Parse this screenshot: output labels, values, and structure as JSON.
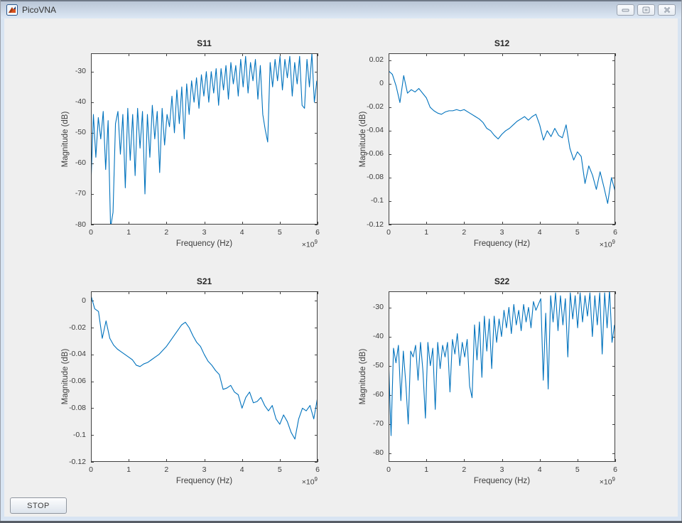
{
  "window": {
    "title": "PicoVNA"
  },
  "stop_button": {
    "label": "STOP"
  },
  "colors": {
    "line": "#0072BD",
    "axis": "#404040",
    "figure_bg": "#efefef",
    "plot_bg": "#ffffff",
    "titlebar_top": "#b9c6d6",
    "titlebar_bottom": "#dde8f5"
  },
  "chart_data": [
    {
      "type": "line",
      "title": "S11",
      "xlabel": "Frequency (Hz)",
      "ylabel": "Magnitude (dB)",
      "x_scale": {
        "base": "×10",
        "exp": "9"
      },
      "xlim": [
        0,
        6
      ],
      "ylim": [
        -80,
        -24
      ],
      "xticks": [
        0,
        1,
        2,
        3,
        4,
        5,
        6
      ],
      "xtick_labels": [
        "0",
        "1",
        "2",
        "3",
        "4",
        "5",
        "6"
      ],
      "yticks": [
        -80,
        -70,
        -60,
        -50,
        -40,
        -30
      ],
      "ytick_labels": [
        "-80",
        "-70",
        "-60",
        "-50",
        "-40",
        "-30"
      ],
      "x0": 0,
      "dx": 0.065,
      "y": [
        -67,
        -44,
        -58,
        -45,
        -52,
        -43,
        -62,
        -46,
        -81,
        -76,
        -47,
        -43,
        -57,
        -44,
        -68,
        -42,
        -59,
        -44,
        -64,
        -42,
        -55,
        -43,
        -70,
        -44,
        -58,
        -41,
        -52,
        -43,
        -63,
        -42,
        -54,
        -44,
        -48,
        -38,
        -50,
        -36,
        -47,
        -35,
        -52,
        -34,
        -44,
        -33,
        -40,
        -32,
        -42,
        -31,
        -38,
        -30,
        -40,
        -30,
        -37,
        -29,
        -41,
        -29,
        -36,
        -28,
        -39,
        -27,
        -34,
        -28,
        -38,
        -26,
        -35,
        -25,
        -37,
        -27,
        -33,
        -26,
        -39,
        -28,
        -44,
        -49,
        -53,
        -27,
        -35,
        -26,
        -33,
        -25,
        -36,
        -26,
        -32,
        -25,
        -38,
        -27,
        -34,
        -25,
        -41,
        -42,
        -26,
        -35,
        -24,
        -40,
        -33
      ]
    },
    {
      "type": "line",
      "title": "S12",
      "xlabel": "Frequency (Hz)",
      "ylabel": "Magnitude (dB)",
      "x_scale": {
        "base": "×10",
        "exp": "9"
      },
      "xlim": [
        0,
        6
      ],
      "ylim": [
        -0.12,
        0.026
      ],
      "xticks": [
        0,
        1,
        2,
        3,
        4,
        5,
        6
      ],
      "xtick_labels": [
        "0",
        "1",
        "2",
        "3",
        "4",
        "5",
        "6"
      ],
      "yticks": [
        0.02,
        0,
        -0.02,
        -0.04,
        -0.06,
        -0.08,
        -0.1,
        -0.12
      ],
      "ytick_labels": [
        "0.02",
        "0",
        "-0.02",
        "-0.04",
        "-0.06",
        "-0.08",
        "-0.1",
        "-0.12"
      ],
      "x0": 0,
      "dx": 0.1,
      "y": [
        0.011,
        0.008,
        -0.002,
        -0.016,
        0.007,
        -0.008,
        -0.005,
        -0.007,
        -0.004,
        -0.008,
        -0.012,
        -0.02,
        -0.023,
        -0.025,
        -0.026,
        -0.024,
        -0.023,
        -0.023,
        -0.022,
        -0.023,
        -0.022,
        -0.024,
        -0.026,
        -0.028,
        -0.03,
        -0.033,
        -0.038,
        -0.04,
        -0.044,
        -0.047,
        -0.043,
        -0.04,
        -0.038,
        -0.035,
        -0.032,
        -0.03,
        -0.028,
        -0.031,
        -0.028,
        -0.026,
        -0.035,
        -0.048,
        -0.04,
        -0.045,
        -0.038,
        -0.044,
        -0.046,
        -0.035,
        -0.055,
        -0.065,
        -0.058,
        -0.062,
        -0.085,
        -0.07,
        -0.078,
        -0.09,
        -0.075,
        -0.088,
        -0.102,
        -0.08,
        -0.092
      ]
    },
    {
      "type": "line",
      "title": "S21",
      "xlabel": "Frequency (Hz)",
      "ylabel": "Magnitude (dB)",
      "x_scale": {
        "base": "×10",
        "exp": "9"
      },
      "xlim": [
        0,
        6
      ],
      "ylim": [
        -0.12,
        0.007
      ],
      "xticks": [
        0,
        1,
        2,
        3,
        4,
        5,
        6
      ],
      "xtick_labels": [
        "0",
        "1",
        "2",
        "3",
        "4",
        "5",
        "6"
      ],
      "yticks": [
        0,
        -0.02,
        -0.04,
        -0.06,
        -0.08,
        -0.1,
        -0.12
      ],
      "ytick_labels": [
        "0",
        "-0.02",
        "-0.04",
        "-0.06",
        "-0.08",
        "-0.1",
        "-0.12"
      ],
      "x0": 0,
      "dx": 0.1,
      "y": [
        0.004,
        -0.006,
        -0.008,
        -0.028,
        -0.015,
        -0.028,
        -0.033,
        -0.036,
        -0.038,
        -0.04,
        -0.042,
        -0.044,
        -0.048,
        -0.049,
        -0.047,
        -0.046,
        -0.044,
        -0.042,
        -0.04,
        -0.037,
        -0.034,
        -0.03,
        -0.026,
        -0.022,
        -0.018,
        -0.016,
        -0.02,
        -0.026,
        -0.031,
        -0.034,
        -0.04,
        -0.045,
        -0.048,
        -0.052,
        -0.055,
        -0.066,
        -0.065,
        -0.063,
        -0.068,
        -0.07,
        -0.08,
        -0.072,
        -0.068,
        -0.076,
        -0.075,
        -0.072,
        -0.078,
        -0.082,
        -0.078,
        -0.088,
        -0.092,
        -0.085,
        -0.09,
        -0.098,
        -0.103,
        -0.088,
        -0.08,
        -0.082,
        -0.078,
        -0.088,
        -0.072
      ]
    },
    {
      "type": "line",
      "title": "S22",
      "xlabel": "Frequency (Hz)",
      "ylabel": "Magnitude (dB)",
      "x_scale": {
        "base": "×10",
        "exp": "9"
      },
      "xlim": [
        0,
        6
      ],
      "ylim": [
        -83,
        -24.5
      ],
      "xticks": [
        0,
        1,
        2,
        3,
        4,
        5,
        6
      ],
      "xtick_labels": [
        "0",
        "1",
        "2",
        "3",
        "4",
        "5",
        "6"
      ],
      "yticks": [
        -80,
        -70,
        -60,
        -50,
        -40,
        -30
      ],
      "ytick_labels": [
        "-80",
        "-70",
        "-60",
        "-50",
        "-40",
        "-30"
      ],
      "x0": 0,
      "dx": 0.065,
      "y": [
        -48,
        -74,
        -44,
        -49,
        -43,
        -62,
        -45,
        -56,
        -70,
        -45,
        -47,
        -43,
        -55,
        -42,
        -52,
        -68,
        -42,
        -50,
        -44,
        -65,
        -42,
        -51,
        -43,
        -47,
        -42,
        -59,
        -41,
        -46,
        -39,
        -50,
        -42,
        -47,
        -41,
        -57,
        -61,
        -36,
        -48,
        -35,
        -54,
        -33,
        -45,
        -34,
        -51,
        -33,
        -42,
        -34,
        -40,
        -31,
        -37,
        -30,
        -39,
        -29,
        -36,
        -31,
        -38,
        -29,
        -35,
        -30,
        -37,
        -28,
        -31,
        -29,
        -27,
        -55,
        -32,
        -58,
        -26,
        -35,
        -25,
        -38,
        -26,
        -36,
        -27,
        -47,
        -25,
        -34,
        -26,
        -37,
        -25,
        -35,
        -26,
        -33,
        -25,
        -40,
        -26,
        -36,
        -25,
        -46,
        -25,
        -37,
        -24,
        -42,
        -36
      ]
    }
  ]
}
